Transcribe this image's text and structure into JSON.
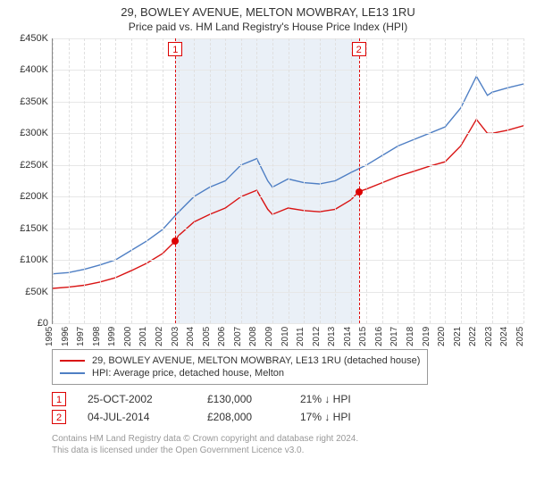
{
  "title": "29, BOWLEY AVENUE, MELTON MOWBRAY, LE13 1RU",
  "subtitle": "Price paid vs. HM Land Registry's House Price Index (HPI)",
  "chart": {
    "type": "line",
    "background_color": "#ffffff",
    "grid_color": "#e7e7e7",
    "vgrid_color": "#e0e0e0",
    "shade_color": "#eaf0f7",
    "x_min": 1995,
    "x_max": 2025,
    "y_min": 0,
    "y_max": 450000,
    "y_ticks": [
      0,
      50000,
      100000,
      150000,
      200000,
      250000,
      300000,
      350000,
      400000,
      450000
    ],
    "y_tick_labels": [
      "£0",
      "£50K",
      "£100K",
      "£150K",
      "£200K",
      "£250K",
      "£300K",
      "£350K",
      "£400K",
      "£450K"
    ],
    "x_ticks": [
      1995,
      1996,
      1997,
      1998,
      1999,
      2000,
      2001,
      2002,
      2003,
      2004,
      2005,
      2006,
      2007,
      2008,
      2009,
      2010,
      2011,
      2012,
      2013,
      2014,
      2015,
      2016,
      2017,
      2018,
      2019,
      2020,
      2021,
      2022,
      2023,
      2024,
      2025
    ],
    "label_fontsize": 11,
    "shade_start": 2002.82,
    "shade_end": 2014.51,
    "series": [
      {
        "id": "hpi",
        "label": "HPI: Average price, detached house, Melton",
        "color": "#4f7fc4",
        "line_width": 1.4,
        "data": [
          [
            1995,
            78000
          ],
          [
            1996,
            80000
          ],
          [
            1997,
            85000
          ],
          [
            1998,
            92000
          ],
          [
            1999,
            100000
          ],
          [
            2000,
            115000
          ],
          [
            2001,
            130000
          ],
          [
            2002,
            148000
          ],
          [
            2003,
            175000
          ],
          [
            2004,
            200000
          ],
          [
            2005,
            215000
          ],
          [
            2006,
            225000
          ],
          [
            2007,
            250000
          ],
          [
            2008,
            260000
          ],
          [
            2008.7,
            225000
          ],
          [
            2009,
            215000
          ],
          [
            2010,
            228000
          ],
          [
            2011,
            222000
          ],
          [
            2012,
            220000
          ],
          [
            2013,
            225000
          ],
          [
            2014,
            238000
          ],
          [
            2015,
            250000
          ],
          [
            2016,
            265000
          ],
          [
            2017,
            280000
          ],
          [
            2018,
            290000
          ],
          [
            2019,
            300000
          ],
          [
            2020,
            310000
          ],
          [
            2021,
            340000
          ],
          [
            2022,
            390000
          ],
          [
            2022.7,
            360000
          ],
          [
            2023,
            365000
          ],
          [
            2024,
            372000
          ],
          [
            2025,
            378000
          ]
        ]
      },
      {
        "id": "property",
        "label": "29, BOWLEY AVENUE, MELTON MOWBRAY, LE13 1RU (detached house)",
        "color": "#d91414",
        "line_width": 1.4,
        "data": [
          [
            1995,
            55000
          ],
          [
            1996,
            57000
          ],
          [
            1997,
            60000
          ],
          [
            1998,
            65000
          ],
          [
            1999,
            72000
          ],
          [
            2000,
            83000
          ],
          [
            2001,
            95000
          ],
          [
            2002,
            110000
          ],
          [
            2002.82,
            130000
          ],
          [
            2003,
            138000
          ],
          [
            2004,
            160000
          ],
          [
            2005,
            172000
          ],
          [
            2006,
            182000
          ],
          [
            2007,
            200000
          ],
          [
            2008,
            210000
          ],
          [
            2008.7,
            180000
          ],
          [
            2009,
            172000
          ],
          [
            2010,
            182000
          ],
          [
            2011,
            178000
          ],
          [
            2012,
            176000
          ],
          [
            2013,
            180000
          ],
          [
            2014,
            195000
          ],
          [
            2014.51,
            208000
          ],
          [
            2015,
            212000
          ],
          [
            2016,
            222000
          ],
          [
            2017,
            232000
          ],
          [
            2018,
            240000
          ],
          [
            2019,
            248000
          ],
          [
            2020,
            255000
          ],
          [
            2021,
            280000
          ],
          [
            2022,
            322000
          ],
          [
            2022.7,
            300000
          ],
          [
            2023,
            300000
          ],
          [
            2024,
            305000
          ],
          [
            2025,
            312000
          ]
        ]
      }
    ],
    "markers": [
      {
        "n": "1",
        "x": 2002.82,
        "y": 130000
      },
      {
        "n": "2",
        "x": 2014.51,
        "y": 208000
      }
    ]
  },
  "legend": {
    "rows": [
      {
        "color": "#d91414",
        "label": "29, BOWLEY AVENUE, MELTON MOWBRAY, LE13 1RU (detached house)"
      },
      {
        "color": "#4f7fc4",
        "label": "HPI: Average price, detached house, Melton"
      }
    ]
  },
  "sales": [
    {
      "n": "1",
      "date": "25-OCT-2002",
      "price": "£130,000",
      "hpi": "21% ↓ HPI"
    },
    {
      "n": "2",
      "date": "04-JUL-2014",
      "price": "£208,000",
      "hpi": "17% ↓ HPI"
    }
  ],
  "footer_line1": "Contains HM Land Registry data © Crown copyright and database right 2024.",
  "footer_line2": "This data is licensed under the Open Government Licence v3.0."
}
